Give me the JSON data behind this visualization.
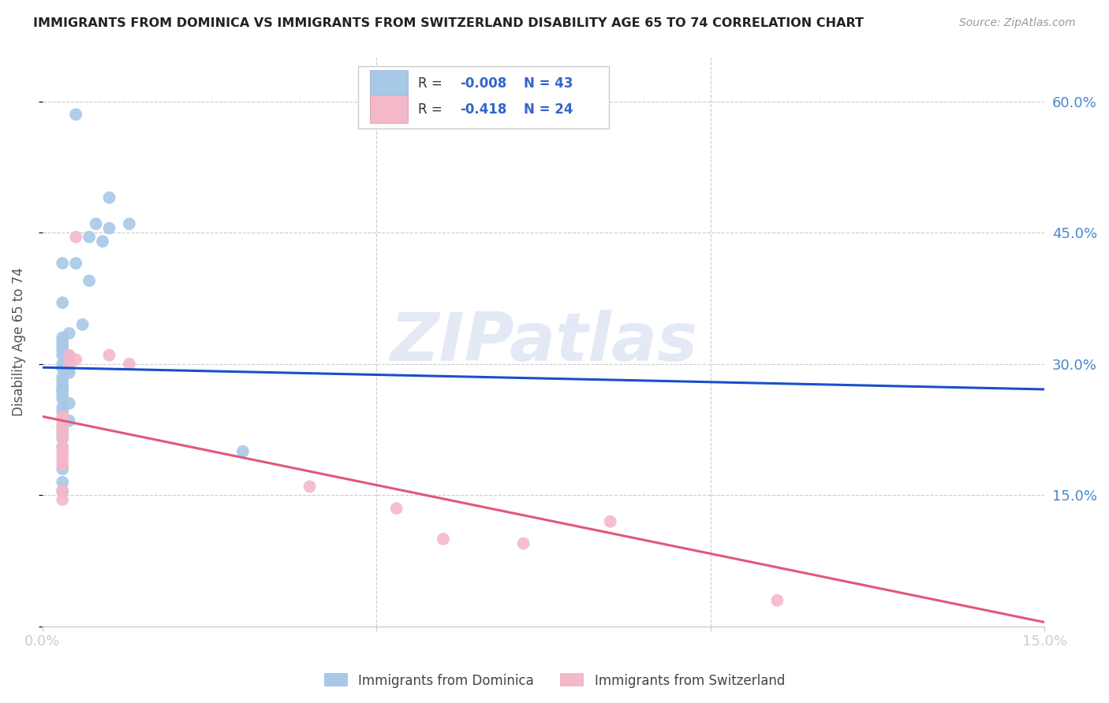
{
  "title": "IMMIGRANTS FROM DOMINICA VS IMMIGRANTS FROM SWITZERLAND DISABILITY AGE 65 TO 74 CORRELATION CHART",
  "source": "Source: ZipAtlas.com",
  "ylabel": "Disability Age 65 to 74",
  "xlim": [
    0.0,
    0.15
  ],
  "ylim": [
    0.0,
    0.65
  ],
  "xtick_positions": [
    0.0,
    0.05,
    0.1,
    0.15
  ],
  "ytick_positions": [
    0.0,
    0.15,
    0.3,
    0.45,
    0.6
  ],
  "series1_color": "#a8c8e8",
  "series2_color": "#f4b8c8",
  "series1_line_color": "#1a4fcc",
  "series2_line_color": "#e05878",
  "series1_label": "Immigrants from Dominica",
  "series2_label": "Immigrants from Switzerland",
  "R1": -0.008,
  "N1": 43,
  "R2": -0.418,
  "N2": 24,
  "tick_label_color": "#4488cc",
  "watermark": "ZIPatlas",
  "series1_x": [
    0.005,
    0.01,
    0.008,
    0.01,
    0.013,
    0.007,
    0.009,
    0.003,
    0.005,
    0.007,
    0.003,
    0.006,
    0.003,
    0.004,
    0.003,
    0.003,
    0.003,
    0.003,
    0.004,
    0.004,
    0.003,
    0.004,
    0.003,
    0.004,
    0.003,
    0.003,
    0.003,
    0.003,
    0.003,
    0.003,
    0.003,
    0.004,
    0.003,
    0.003,
    0.004,
    0.003,
    0.003,
    0.003,
    0.003,
    0.03,
    0.003,
    0.003,
    0.003
  ],
  "series1_y": [
    0.585,
    0.49,
    0.46,
    0.455,
    0.46,
    0.445,
    0.44,
    0.415,
    0.415,
    0.395,
    0.37,
    0.345,
    0.33,
    0.335,
    0.325,
    0.32,
    0.315,
    0.31,
    0.308,
    0.305,
    0.3,
    0.295,
    0.295,
    0.29,
    0.285,
    0.28,
    0.275,
    0.27,
    0.27,
    0.265,
    0.26,
    0.255,
    0.25,
    0.245,
    0.235,
    0.225,
    0.22,
    0.215,
    0.205,
    0.2,
    0.18,
    0.165,
    0.155
  ],
  "series2_x": [
    0.003,
    0.003,
    0.003,
    0.003,
    0.003,
    0.003,
    0.005,
    0.004,
    0.004,
    0.005,
    0.01,
    0.013,
    0.003,
    0.003,
    0.003,
    0.003,
    0.003,
    0.003,
    0.04,
    0.053,
    0.06,
    0.072,
    0.085,
    0.11
  ],
  "series2_y": [
    0.24,
    0.235,
    0.23,
    0.225,
    0.215,
    0.205,
    0.445,
    0.31,
    0.3,
    0.305,
    0.31,
    0.3,
    0.2,
    0.195,
    0.19,
    0.185,
    0.155,
    0.145,
    0.16,
    0.135,
    0.1,
    0.095,
    0.12,
    0.03
  ]
}
